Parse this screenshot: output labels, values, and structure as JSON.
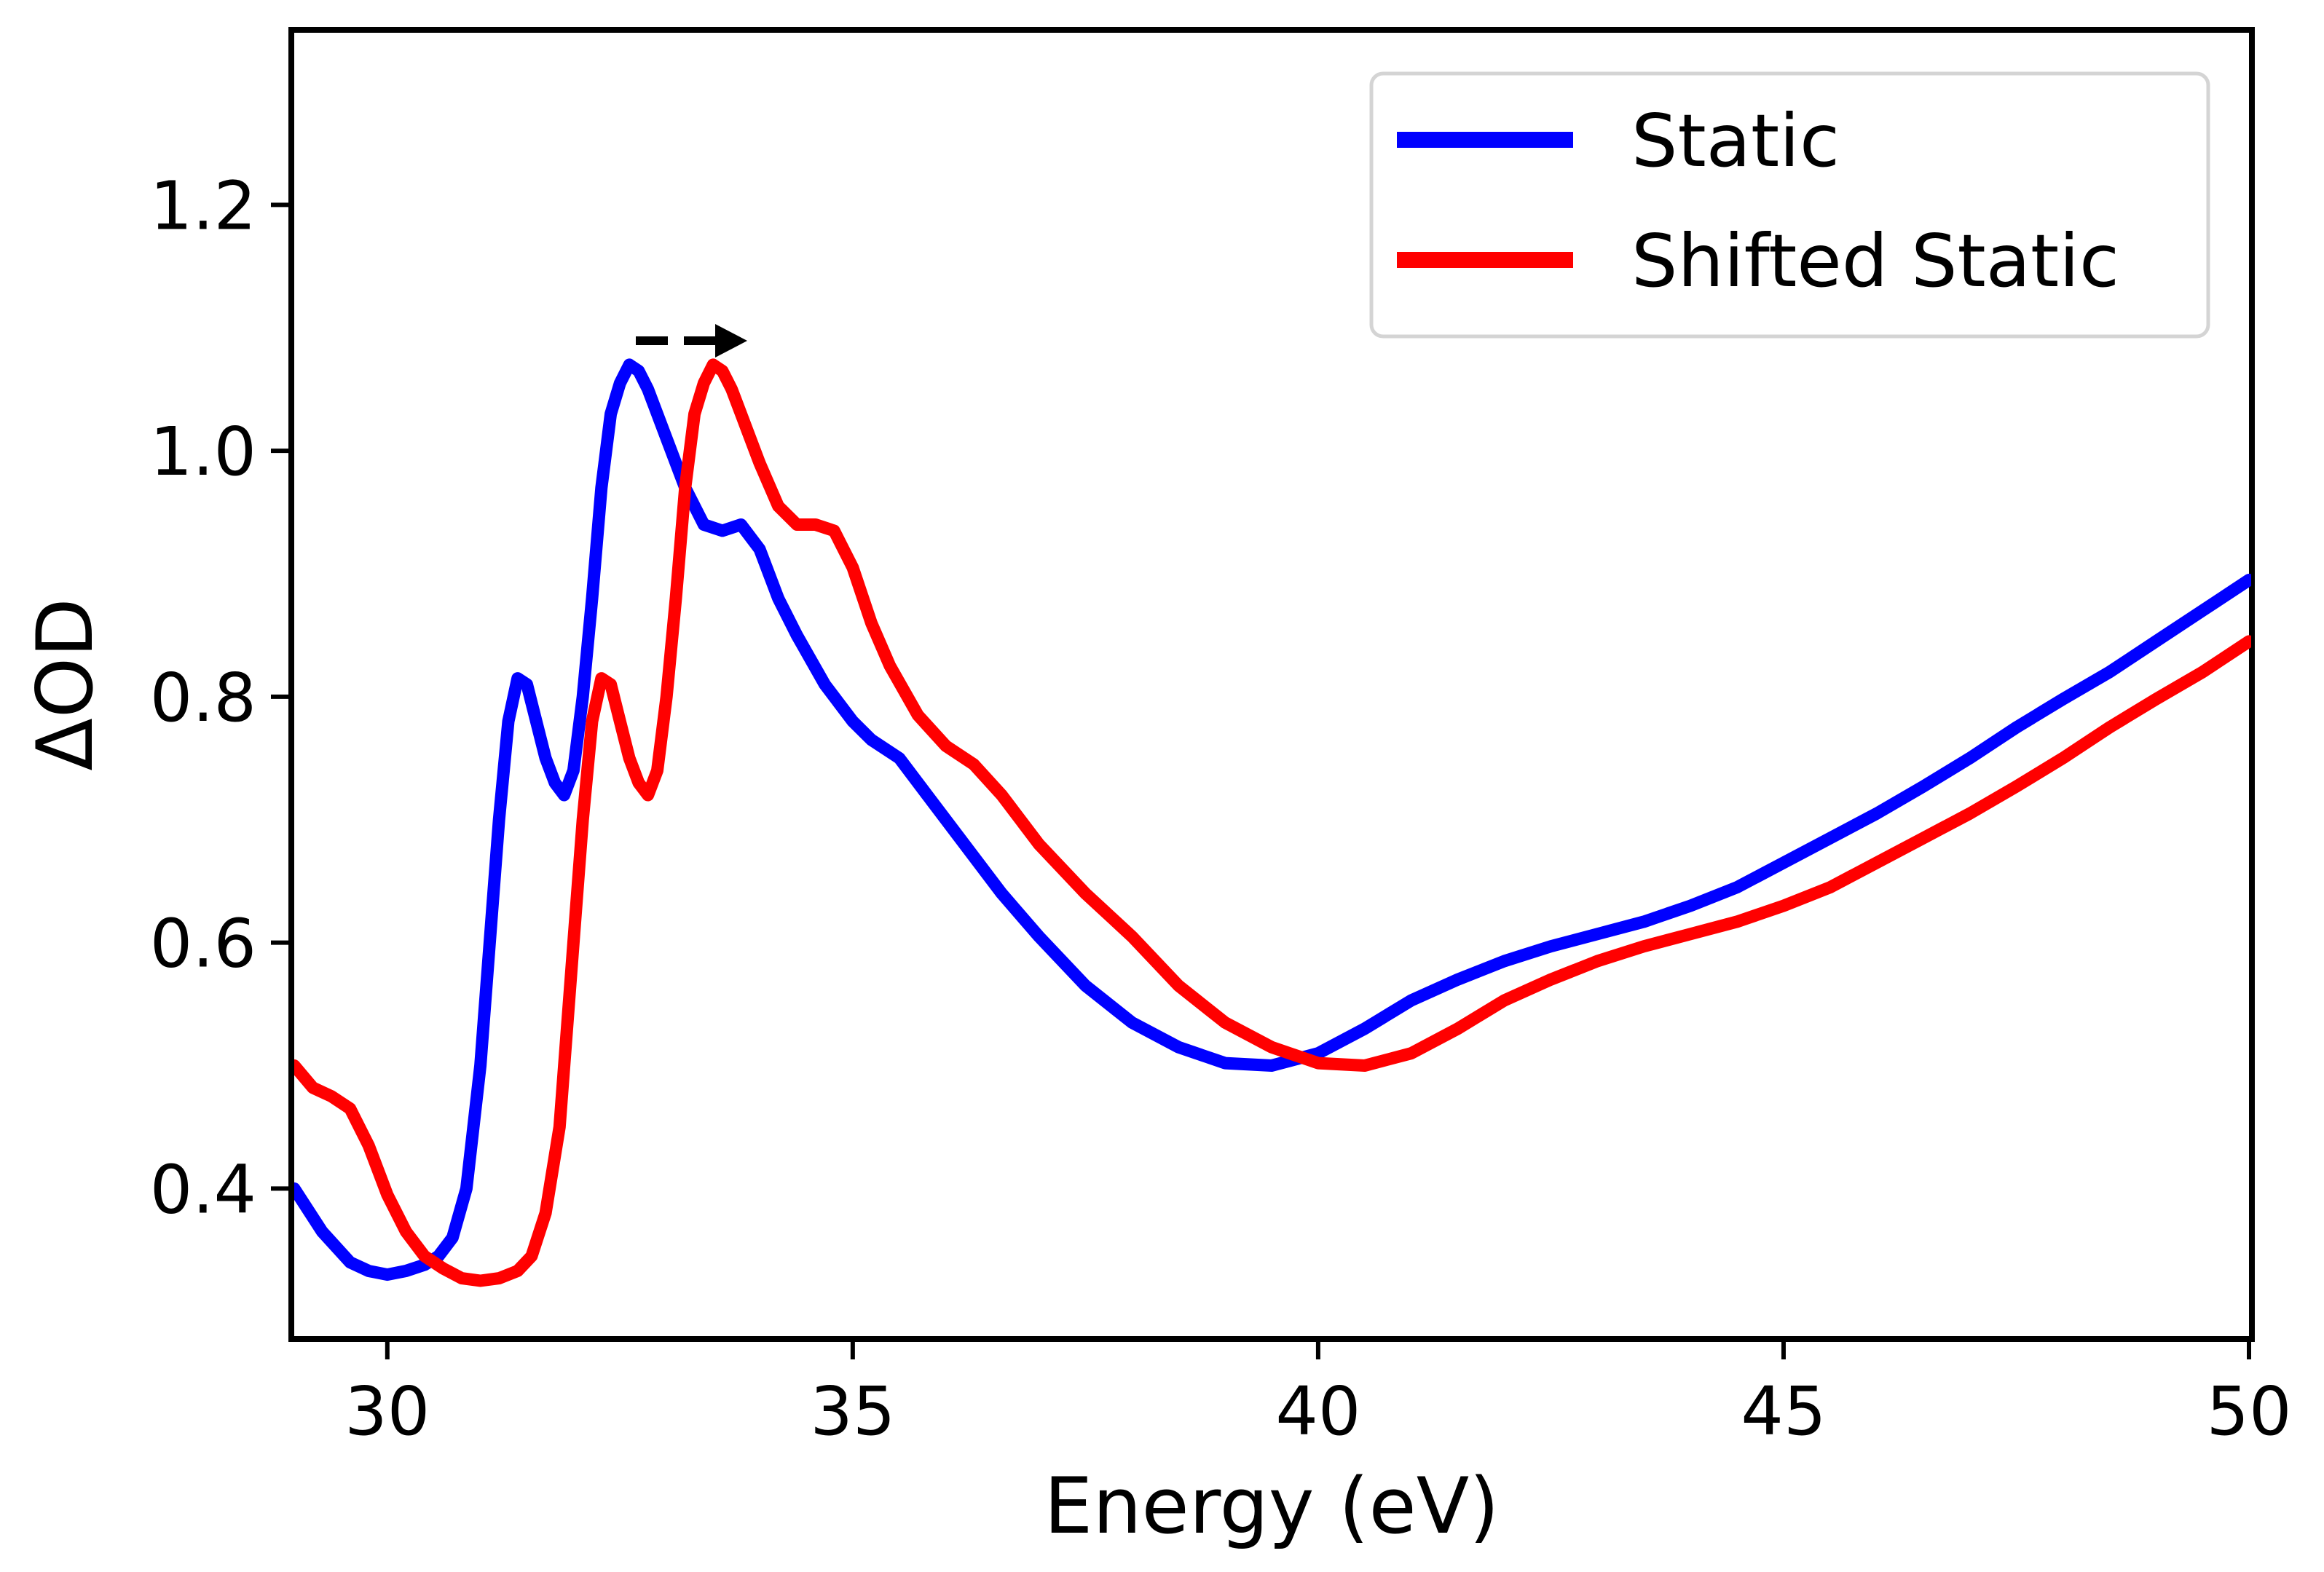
{
  "chart_data": {
    "type": "line",
    "title": "",
    "xlabel": "Energy (eV)",
    "ylabel": "ΔOD",
    "xlim": [
      29,
      50
    ],
    "ylim": [
      0.28,
      1.34
    ],
    "xticks": [
      30,
      35,
      40,
      45,
      50
    ],
    "xtick_labels": [
      "30",
      "35",
      "40",
      "45",
      "50"
    ],
    "yticks": [
      0.4,
      0.6,
      0.8,
      1.0,
      1.2
    ],
    "ytick_labels": [
      "0.4",
      "0.6",
      "0.8",
      "1.0",
      "1.2"
    ],
    "grid": false,
    "legend_position": "top-right",
    "annotation": "dashed arrow pointing right from the Static peak to the Shifted Static peak",
    "series": [
      {
        "name": "Static",
        "color": "#0000ff",
        "x": [
          29.0,
          29.3,
          29.6,
          29.8,
          30.0,
          30.2,
          30.4,
          30.55,
          30.7,
          30.85,
          31.0,
          31.1,
          31.2,
          31.3,
          31.4,
          31.5,
          31.6,
          31.7,
          31.8,
          31.9,
          32.0,
          32.1,
          32.2,
          32.3,
          32.4,
          32.5,
          32.6,
          32.7,
          32.8,
          33.0,
          33.2,
          33.4,
          33.6,
          33.8,
          34.0,
          34.2,
          34.4,
          34.7,
          35.0,
          35.2,
          35.5,
          35.8,
          36.2,
          36.6,
          37.0,
          37.5,
          38.0,
          38.5,
          39.0,
          39.5,
          40.0,
          40.5,
          41.0,
          41.5,
          42.0,
          42.5,
          43.0,
          43.5,
          44.0,
          44.5,
          45.0,
          45.5,
          46.0,
          46.5,
          47.0,
          47.5,
          48.0,
          48.5,
          49.0,
          49.5,
          50.0
        ],
        "y": [
          0.4,
          0.365,
          0.34,
          0.333,
          0.33,
          0.333,
          0.338,
          0.345,
          0.36,
          0.4,
          0.5,
          0.6,
          0.7,
          0.78,
          0.815,
          0.81,
          0.78,
          0.75,
          0.73,
          0.72,
          0.74,
          0.8,
          0.88,
          0.97,
          1.03,
          1.055,
          1.07,
          1.065,
          1.05,
          1.01,
          0.97,
          0.94,
          0.935,
          0.94,
          0.92,
          0.88,
          0.85,
          0.81,
          0.78,
          0.765,
          0.75,
          0.72,
          0.68,
          0.64,
          0.605,
          0.565,
          0.535,
          0.515,
          0.502,
          0.5,
          0.51,
          0.53,
          0.553,
          0.57,
          0.585,
          0.597,
          0.607,
          0.617,
          0.63,
          0.645,
          0.665,
          0.685,
          0.705,
          0.727,
          0.75,
          0.775,
          0.798,
          0.82,
          0.845,
          0.87,
          0.895
        ]
      },
      {
        "name": "Shifted Static",
        "color": "#ff0000",
        "x": [
          29.0,
          29.2,
          29.4,
          29.6,
          29.8,
          30.0,
          30.2,
          30.4,
          30.6,
          30.8,
          31.0,
          31.2,
          31.4,
          31.55,
          31.7,
          31.85,
          32.0,
          32.1,
          32.2,
          32.3,
          32.4,
          32.5,
          32.6,
          32.7,
          32.8,
          32.9,
          33.0,
          33.1,
          33.2,
          33.3,
          33.4,
          33.5,
          33.6,
          33.7,
          33.8,
          34.0,
          34.2,
          34.4,
          34.6,
          34.8,
          35.0,
          35.2,
          35.4,
          35.7,
          36.0,
          36.3,
          36.6,
          37.0,
          37.5,
          38.0,
          38.5,
          39.0,
          39.5,
          40.0,
          40.5,
          41.0,
          41.5,
          42.0,
          42.5,
          43.0,
          43.5,
          44.0,
          44.5,
          45.0,
          45.5,
          46.0,
          46.5,
          47.0,
          47.5,
          48.0,
          48.5,
          49.0,
          49.5,
          50.0
        ],
        "y": [
          0.5,
          0.482,
          0.475,
          0.465,
          0.435,
          0.395,
          0.365,
          0.345,
          0.335,
          0.327,
          0.325,
          0.327,
          0.333,
          0.345,
          0.38,
          0.45,
          0.6,
          0.7,
          0.78,
          0.815,
          0.81,
          0.78,
          0.75,
          0.73,
          0.72,
          0.74,
          0.8,
          0.88,
          0.97,
          1.03,
          1.055,
          1.07,
          1.065,
          1.05,
          1.03,
          0.99,
          0.955,
          0.94,
          0.94,
          0.935,
          0.905,
          0.86,
          0.825,
          0.785,
          0.76,
          0.745,
          0.72,
          0.68,
          0.64,
          0.605,
          0.565,
          0.535,
          0.515,
          0.502,
          0.5,
          0.51,
          0.53,
          0.553,
          0.57,
          0.585,
          0.597,
          0.607,
          0.617,
          0.63,
          0.645,
          0.665,
          0.685,
          0.705,
          0.727,
          0.75,
          0.775,
          0.798,
          0.82,
          0.845
        ]
      }
    ]
  }
}
